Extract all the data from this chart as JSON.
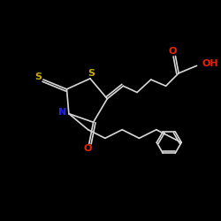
{
  "bg_color": "#000000",
  "bond_color": "#d8d8d8",
  "S_color": "#ccaa00",
  "N_color": "#2222ee",
  "O_color": "#ee2200",
  "lw": 1.2,
  "figsize": [
    2.5,
    2.5
  ],
  "dpi": 100,
  "xlim": [
    0,
    10
  ],
  "ylim": [
    0,
    10
  ]
}
